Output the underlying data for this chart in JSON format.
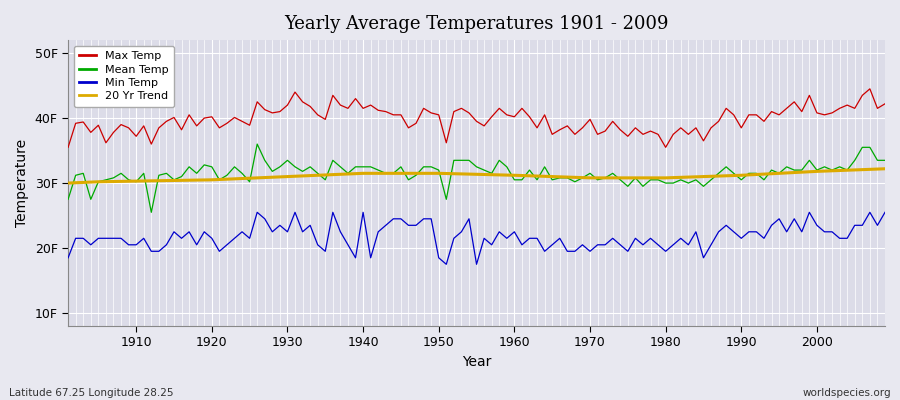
{
  "title": "Yearly Average Temperatures 1901 - 2009",
  "xlabel": "Year",
  "ylabel": "Temperature",
  "lat_lon_label": "Latitude 67.25 Longitude 28.25",
  "source_label": "worldspecies.org",
  "years_start": 1901,
  "years_end": 2009,
  "yticks": [
    10,
    20,
    30,
    40,
    50
  ],
  "ytick_labels": [
    "10F",
    "20F",
    "30F",
    "40F",
    "50F"
  ],
  "ylim": [
    8,
    52
  ],
  "xlim": [
    1901,
    2009
  ],
  "fig_bg_color": "#e8e8f0",
  "plot_bg_color": "#dcdce8",
  "grid_color": "#ffffff",
  "max_temp_color": "#cc0000",
  "mean_temp_color": "#00aa00",
  "min_temp_color": "#0000cc",
  "trend_color": "#ddaa00",
  "legend_entries": [
    "Max Temp",
    "Mean Temp",
    "Min Temp",
    "20 Yr Trend"
  ],
  "max_temps": [
    35.5,
    39.2,
    39.4,
    37.8,
    38.9,
    36.2,
    37.8,
    39.0,
    38.5,
    37.2,
    38.8,
    36.0,
    38.5,
    39.5,
    40.1,
    38.2,
    40.5,
    38.8,
    40.0,
    40.2,
    38.5,
    39.2,
    40.1,
    39.5,
    38.9,
    42.5,
    41.3,
    40.8,
    41.0,
    42.0,
    44.0,
    42.5,
    41.8,
    40.5,
    39.8,
    43.5,
    42.0,
    41.5,
    43.0,
    41.5,
    42.0,
    41.2,
    41.0,
    40.5,
    40.5,
    38.5,
    39.2,
    41.5,
    40.8,
    40.5,
    36.2,
    41.0,
    41.5,
    40.8,
    39.5,
    38.8,
    40.2,
    41.5,
    40.5,
    40.2,
    41.5,
    40.2,
    38.5,
    40.5,
    37.5,
    38.2,
    38.8,
    37.5,
    38.5,
    39.8,
    37.5,
    38.0,
    39.5,
    38.2,
    37.2,
    38.5,
    37.5,
    38.0,
    37.5,
    35.5,
    37.5,
    38.5,
    37.5,
    38.5,
    36.5,
    38.5,
    39.5,
    41.5,
    40.5,
    38.5,
    40.5,
    40.5,
    39.5,
    41.0,
    40.5,
    41.5,
    42.5,
    41.0,
    43.5,
    40.8,
    40.5,
    40.8,
    41.5,
    42.0,
    41.5,
    43.5,
    44.5,
    41.5,
    42.2
  ],
  "mean_temps": [
    27.5,
    31.2,
    31.5,
    27.5,
    30.2,
    30.5,
    30.8,
    31.5,
    30.5,
    30.2,
    31.5,
    25.5,
    31.2,
    31.5,
    30.5,
    31.0,
    32.5,
    31.5,
    32.8,
    32.5,
    30.5,
    31.2,
    32.5,
    31.5,
    30.2,
    36.0,
    33.5,
    31.8,
    32.5,
    33.5,
    32.5,
    31.8,
    32.5,
    31.5,
    30.5,
    33.5,
    32.5,
    31.5,
    32.5,
    32.5,
    32.5,
    32.0,
    31.5,
    31.5,
    32.5,
    30.5,
    31.2,
    32.5,
    32.5,
    32.0,
    27.5,
    33.5,
    33.5,
    33.5,
    32.5,
    32.0,
    31.5,
    33.5,
    32.5,
    30.5,
    30.5,
    32.0,
    30.5,
    32.5,
    30.5,
    30.8,
    30.8,
    30.2,
    30.8,
    31.5,
    30.5,
    30.8,
    31.5,
    30.5,
    29.5,
    30.8,
    29.5,
    30.5,
    30.5,
    30.0,
    30.0,
    30.5,
    30.0,
    30.5,
    29.5,
    30.5,
    31.5,
    32.5,
    31.5,
    30.5,
    31.5,
    31.5,
    30.5,
    32.0,
    31.5,
    32.5,
    32.0,
    32.0,
    33.5,
    32.0,
    32.5,
    32.0,
    32.5,
    32.0,
    33.5,
    35.5,
    35.5,
    33.5,
    33.5
  ],
  "min_temps": [
    18.5,
    21.5,
    21.5,
    20.5,
    21.5,
    21.5,
    21.5,
    21.5,
    20.5,
    20.5,
    21.5,
    19.5,
    19.5,
    20.5,
    22.5,
    21.5,
    22.5,
    20.5,
    22.5,
    21.5,
    19.5,
    20.5,
    21.5,
    22.5,
    21.5,
    25.5,
    24.5,
    22.5,
    23.5,
    22.5,
    25.5,
    22.5,
    23.5,
    20.5,
    19.5,
    25.5,
    22.5,
    20.5,
    18.5,
    25.5,
    18.5,
    22.5,
    23.5,
    24.5,
    24.5,
    23.5,
    23.5,
    24.5,
    24.5,
    18.5,
    17.5,
    21.5,
    22.5,
    24.5,
    17.5,
    21.5,
    20.5,
    22.5,
    21.5,
    22.5,
    20.5,
    21.5,
    21.5,
    19.5,
    20.5,
    21.5,
    19.5,
    19.5,
    20.5,
    19.5,
    20.5,
    20.5,
    21.5,
    20.5,
    19.5,
    21.5,
    20.5,
    21.5,
    20.5,
    19.5,
    20.5,
    21.5,
    20.5,
    22.5,
    18.5,
    20.5,
    22.5,
    23.5,
    22.5,
    21.5,
    22.5,
    22.5,
    21.5,
    23.5,
    24.5,
    22.5,
    24.5,
    22.5,
    25.5,
    23.5,
    22.5,
    22.5,
    21.5,
    21.5,
    23.5,
    23.5,
    25.5,
    23.5,
    25.5
  ],
  "trend_values_x": [
    1901,
    1905,
    1910,
    1920,
    1930,
    1940,
    1950,
    1960,
    1970,
    1980,
    1990,
    2000,
    2009
  ],
  "trend_values_y": [
    30.0,
    30.2,
    30.3,
    30.5,
    31.0,
    31.5,
    31.5,
    31.2,
    30.8,
    30.8,
    31.2,
    31.8,
    32.2
  ]
}
